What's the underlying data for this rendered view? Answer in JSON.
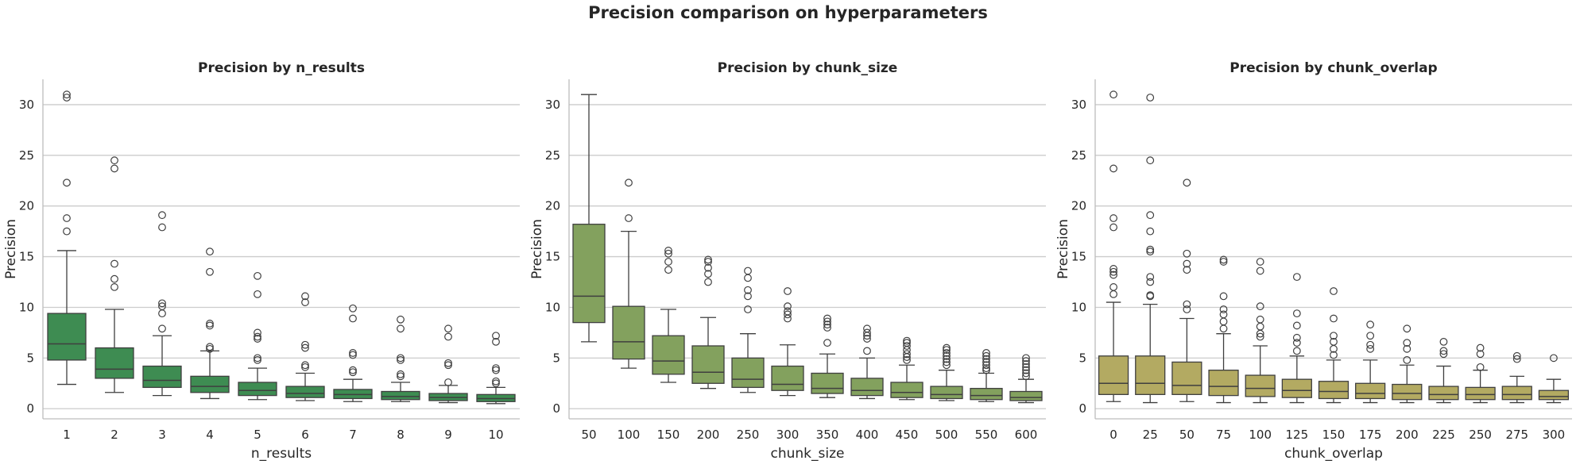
{
  "figure": {
    "title": "Precision comparison on hyperparameters",
    "colors": {
      "grid": "#cccccc",
      "axis": "#bdbdbd",
      "line": "#3f3f3f"
    }
  },
  "chart_data": [
    {
      "type": "box",
      "title": "Precision by n_results",
      "xlabel": "n_results",
      "ylabel": "Precision",
      "ylim": [
        -1,
        32.5
      ],
      "yticks": [
        0,
        5,
        10,
        15,
        20,
        25,
        30
      ],
      "grid": true,
      "color": "#3e8c52",
      "categories": [
        "1",
        "2",
        "3",
        "4",
        "5",
        "6",
        "7",
        "8",
        "9",
        "10"
      ],
      "boxes": [
        {
          "q1": 4.8,
          "median": 6.4,
          "q3": 9.4,
          "whislo": 2.4,
          "whishi": 15.6,
          "fliers": [
            17.5,
            18.8,
            22.3,
            30.7,
            31.0
          ]
        },
        {
          "q1": 3.0,
          "median": 3.9,
          "q3": 6.0,
          "whislo": 1.6,
          "whishi": 9.8,
          "fliers": [
            12.0,
            12.8,
            14.3,
            23.7,
            24.5
          ]
        },
        {
          "q1": 2.1,
          "median": 2.8,
          "q3": 4.2,
          "whislo": 1.3,
          "whishi": 7.2,
          "fliers": [
            7.9,
            9.4,
            10.1,
            10.4,
            17.9,
            19.1
          ]
        },
        {
          "q1": 1.6,
          "median": 2.2,
          "q3": 3.2,
          "whislo": 1.0,
          "whishi": 5.7,
          "fliers": [
            5.9,
            6.1,
            8.2,
            8.4,
            13.5,
            15.5
          ]
        },
        {
          "q1": 1.3,
          "median": 1.8,
          "q3": 2.6,
          "whislo": 0.9,
          "whishi": 4.0,
          "fliers": [
            4.8,
            5.0,
            6.9,
            7.1,
            7.5,
            11.3,
            13.1
          ]
        },
        {
          "q1": 1.1,
          "median": 1.5,
          "q3": 2.2,
          "whislo": 0.8,
          "whishi": 3.5,
          "fliers": [
            4.1,
            4.3,
            6.0,
            6.3,
            10.5,
            11.1
          ]
        },
        {
          "q1": 1.0,
          "median": 1.4,
          "q3": 1.9,
          "whislo": 0.7,
          "whishi": 2.9,
          "fliers": [
            3.6,
            3.8,
            5.3,
            5.5,
            8.9,
            9.9
          ]
        },
        {
          "q1": 0.9,
          "median": 1.2,
          "q3": 1.7,
          "whislo": 0.7,
          "whishi": 2.6,
          "fliers": [
            3.2,
            3.4,
            4.8,
            5.0,
            7.9,
            8.8
          ]
        },
        {
          "q1": 0.8,
          "median": 1.1,
          "q3": 1.5,
          "whislo": 0.6,
          "whishi": 2.3,
          "fliers": [
            2.6,
            4.3,
            4.5,
            7.1,
            7.9
          ]
        },
        {
          "q1": 0.7,
          "median": 1.0,
          "q3": 1.4,
          "whislo": 0.5,
          "whishi": 2.1,
          "fliers": [
            2.5,
            2.7,
            3.8,
            4.0,
            6.6,
            7.2
          ]
        }
      ]
    },
    {
      "type": "box",
      "title": "Precision by chunk_size",
      "xlabel": "chunk_size",
      "ylabel": "Precision",
      "ylim": [
        -1,
        32.5
      ],
      "yticks": [
        0,
        5,
        10,
        15,
        20,
        25,
        30
      ],
      "grid": true,
      "color": "#83a15e",
      "categories": [
        "50",
        "100",
        "150",
        "200",
        "250",
        "300",
        "350",
        "400",
        "450",
        "500",
        "550",
        "600"
      ],
      "boxes": [
        {
          "q1": 8.5,
          "median": 11.1,
          "q3": 18.2,
          "whislo": 6.6,
          "whishi": 31.0,
          "fliers": []
        },
        {
          "q1": 4.9,
          "median": 6.6,
          "q3": 10.1,
          "whislo": 4.0,
          "whishi": 17.5,
          "fliers": [
            18.8,
            22.3
          ]
        },
        {
          "q1": 3.4,
          "median": 4.7,
          "q3": 7.2,
          "whislo": 2.6,
          "whishi": 9.8,
          "fliers": [
            13.7,
            14.5,
            15.3,
            15.6
          ]
        },
        {
          "q1": 2.5,
          "median": 3.6,
          "q3": 6.2,
          "whislo": 2.0,
          "whishi": 9.0,
          "fliers": [
            12.5,
            13.3,
            13.9,
            14.5,
            14.7
          ]
        },
        {
          "q1": 2.1,
          "median": 2.9,
          "q3": 5.0,
          "whislo": 1.6,
          "whishi": 7.4,
          "fliers": [
            9.8,
            11.1,
            11.7,
            12.9,
            13.6
          ]
        },
        {
          "q1": 1.8,
          "median": 2.4,
          "q3": 4.2,
          "whislo": 1.3,
          "whishi": 6.3,
          "fliers": [
            8.9,
            9.3,
            9.6,
            10.1,
            11.6
          ]
        },
        {
          "q1": 1.5,
          "median": 2.0,
          "q3": 3.5,
          "whislo": 1.1,
          "whishi": 5.4,
          "fliers": [
            6.5,
            8.0,
            8.3,
            8.6,
            8.9
          ]
        },
        {
          "q1": 1.3,
          "median": 1.8,
          "q3": 3.0,
          "whislo": 1.0,
          "whishi": 5.0,
          "fliers": [
            5.7,
            6.9,
            7.2,
            7.5,
            7.9
          ]
        },
        {
          "q1": 1.1,
          "median": 1.6,
          "q3": 2.6,
          "whislo": 0.9,
          "whishi": 4.3,
          "fliers": [
            4.8,
            5.1,
            5.4,
            5.8,
            6.2,
            6.5,
            6.7
          ]
        },
        {
          "q1": 1.0,
          "median": 1.4,
          "q3": 2.2,
          "whislo": 0.8,
          "whishi": 3.8,
          "fliers": [
            4.3,
            4.6,
            4.9,
            5.2,
            5.5,
            5.8,
            6.0
          ]
        },
        {
          "q1": 0.9,
          "median": 1.3,
          "q3": 2.0,
          "whislo": 0.7,
          "whishi": 3.5,
          "fliers": [
            3.8,
            4.0,
            4.3,
            4.6,
            4.9,
            5.2,
            5.5
          ]
        },
        {
          "q1": 0.8,
          "median": 1.1,
          "q3": 1.7,
          "whislo": 0.6,
          "whishi": 2.9,
          "fliers": [
            3.2,
            3.5,
            3.8,
            4.1,
            4.4,
            4.7,
            5.0
          ]
        }
      ]
    },
    {
      "type": "box",
      "title": "Precision by chunk_overlap",
      "xlabel": "chunk_overlap",
      "ylabel": "Precision",
      "ylim": [
        -1,
        32.5
      ],
      "yticks": [
        0,
        5,
        10,
        15,
        20,
        25,
        30
      ],
      "grid": true,
      "color": "#b3aa62",
      "categories": [
        "0",
        "25",
        "50",
        "75",
        "100",
        "125",
        "150",
        "175",
        "200",
        "225",
        "250",
        "275",
        "300"
      ],
      "boxes": [
        {
          "q1": 1.4,
          "median": 2.5,
          "q3": 5.2,
          "whislo": 0.7,
          "whishi": 10.5,
          "fliers": [
            11.3,
            12.0,
            13.2,
            13.5,
            13.8,
            17.9,
            18.8,
            23.7,
            31.0
          ]
        },
        {
          "q1": 1.4,
          "median": 2.5,
          "q3": 5.2,
          "whislo": 0.6,
          "whishi": 10.3,
          "fliers": [
            11.1,
            11.2,
            12.5,
            13.0,
            15.5,
            15.7,
            17.5,
            19.1,
            24.5,
            30.7
          ]
        },
        {
          "q1": 1.4,
          "median": 2.3,
          "q3": 4.6,
          "whislo": 0.7,
          "whishi": 8.9,
          "fliers": [
            9.8,
            10.3,
            13.7,
            14.3,
            15.3,
            22.3
          ]
        },
        {
          "q1": 1.3,
          "median": 2.2,
          "q3": 3.8,
          "whislo": 0.6,
          "whishi": 7.4,
          "fliers": [
            7.9,
            8.6,
            9.3,
            9.8,
            11.1,
            14.5,
            14.7
          ]
        },
        {
          "q1": 1.2,
          "median": 2.0,
          "q3": 3.3,
          "whislo": 0.6,
          "whishi": 6.2,
          "fliers": [
            7.1,
            7.4,
            8.1,
            8.8,
            10.1,
            13.6,
            14.5
          ]
        },
        {
          "q1": 1.1,
          "median": 1.8,
          "q3": 2.9,
          "whislo": 0.6,
          "whishi": 5.2,
          "fliers": [
            5.7,
            6.5,
            7.0,
            8.2,
            9.4,
            13.0
          ]
        },
        {
          "q1": 1.0,
          "median": 1.7,
          "q3": 2.7,
          "whislo": 0.6,
          "whishi": 4.8,
          "fliers": [
            5.3,
            5.9,
            6.6,
            7.2,
            8.9,
            11.6
          ]
        },
        {
          "q1": 1.0,
          "median": 1.5,
          "q3": 2.5,
          "whislo": 0.6,
          "whishi": 4.8,
          "fliers": [
            5.9,
            6.3,
            7.2,
            8.3
          ]
        },
        {
          "q1": 0.9,
          "median": 1.5,
          "q3": 2.4,
          "whislo": 0.6,
          "whishi": 4.3,
          "fliers": [
            4.8,
            5.9,
            6.5,
            7.9
          ]
        },
        {
          "q1": 0.9,
          "median": 1.4,
          "q3": 2.2,
          "whislo": 0.6,
          "whishi": 4.2,
          "fliers": [
            5.4,
            5.7,
            6.6
          ]
        },
        {
          "q1": 0.9,
          "median": 1.4,
          "q3": 2.1,
          "whislo": 0.6,
          "whishi": 3.8,
          "fliers": [
            4.1,
            5.4,
            6.0
          ]
        },
        {
          "q1": 0.9,
          "median": 1.4,
          "q3": 2.2,
          "whislo": 0.6,
          "whishi": 3.2,
          "fliers": [
            4.9,
            5.2
          ]
        },
        {
          "q1": 0.9,
          "median": 1.2,
          "q3": 1.8,
          "whislo": 0.6,
          "whishi": 2.9,
          "fliers": [
            5.0
          ]
        }
      ]
    }
  ]
}
